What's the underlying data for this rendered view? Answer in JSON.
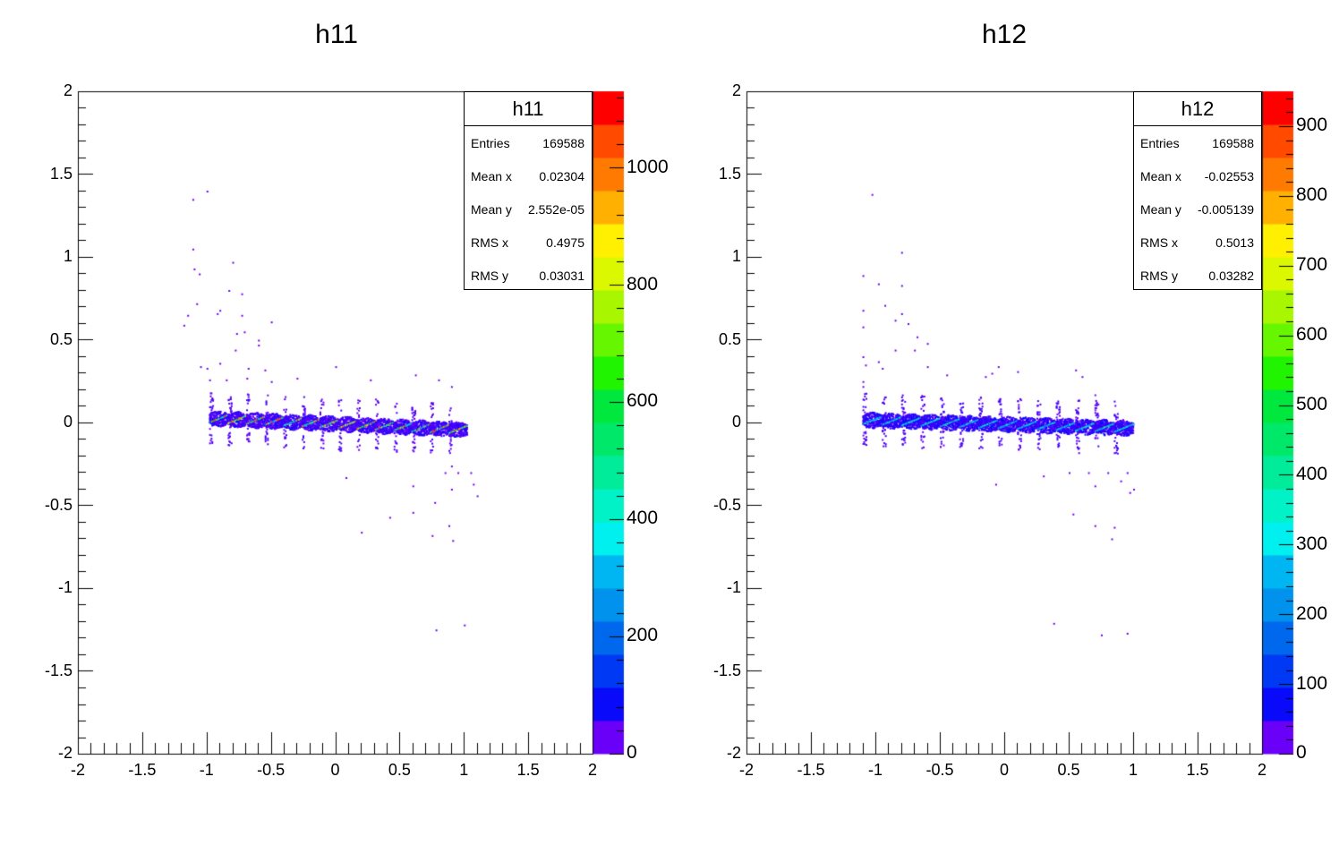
{
  "chart_data": [
    {
      "type": "heatmap",
      "title": "h11",
      "xlim": [
        -2,
        2
      ],
      "ylim": [
        -2,
        2
      ],
      "x_ticks": [
        "-2",
        "-1.5",
        "-1",
        "-0.5",
        "0",
        "0.5",
        "1",
        "1.5",
        "2"
      ],
      "y_ticks": [
        "2",
        "1.5",
        "1",
        "0.5",
        "0",
        "-0.5",
        "-1",
        "-1.5",
        "-2"
      ],
      "z_max": 1130,
      "z_ticks": [
        "0",
        "200",
        "400",
        "600",
        "800",
        "1000"
      ],
      "stats": {
        "title": "h11",
        "rows": [
          {
            "label": "Entries",
            "value": "169588"
          },
          {
            "label": "Mean x",
            "value": "0.02304"
          },
          {
            "label": "Mean y",
            "value": "2.552e-05"
          },
          {
            "label": "RMS x",
            "value": "0.4975"
          },
          {
            "label": "RMS y",
            "value": "0.03031"
          }
        ]
      },
      "band": {
        "x_start": -0.98,
        "x_end": 1.02,
        "y_start": 0.03,
        "y_end": -0.04,
        "teeth": 14
      },
      "outliers": [
        [
          -1.11,
          1.35
        ],
        [
          -1.0,
          1.4
        ],
        [
          -1.11,
          1.05
        ],
        [
          -1.1,
          0.93
        ],
        [
          -1.06,
          0.9
        ],
        [
          -0.8,
          0.97
        ],
        [
          -0.83,
          0.8
        ],
        [
          -0.73,
          0.78
        ],
        [
          -1.08,
          0.72
        ],
        [
          -1.15,
          0.65
        ],
        [
          -0.9,
          0.68
        ],
        [
          -0.92,
          0.66
        ],
        [
          -0.73,
          0.65
        ],
        [
          -1.18,
          0.59
        ],
        [
          -0.5,
          0.61
        ],
        [
          -0.77,
          0.54
        ],
        [
          -0.71,
          0.55
        ],
        [
          -0.6,
          0.5
        ],
        [
          -0.6,
          0.47
        ],
        [
          -0.78,
          0.44
        ],
        [
          -1.05,
          0.34
        ],
        [
          -1.0,
          0.33
        ],
        [
          -0.9,
          0.36
        ],
        [
          -0.55,
          0.32
        ],
        [
          -0.68,
          0.33
        ],
        [
          -0.98,
          0.26
        ],
        [
          -0.85,
          0.26
        ],
        [
          -0.69,
          0.27
        ],
        [
          -0.5,
          0.25
        ],
        [
          -0.3,
          0.27
        ],
        [
          0.0,
          0.34
        ],
        [
          0.27,
          0.26
        ],
        [
          0.62,
          0.29
        ],
        [
          0.8,
          0.26
        ],
        [
          0.9,
          0.22
        ],
        [
          0.85,
          -0.3
        ],
        [
          0.9,
          -0.26
        ],
        [
          0.95,
          -0.3
        ],
        [
          1.05,
          -0.3
        ],
        [
          1.07,
          -0.37
        ],
        [
          1.1,
          -0.44
        ],
        [
          0.6,
          -0.38
        ],
        [
          0.9,
          -0.4
        ],
        [
          0.42,
          -0.57
        ],
        [
          0.6,
          -0.54
        ],
        [
          0.77,
          -0.48
        ],
        [
          0.2,
          -0.66
        ],
        [
          0.88,
          -0.62
        ],
        [
          0.75,
          -0.68
        ],
        [
          0.91,
          -0.71
        ],
        [
          0.78,
          -1.25
        ],
        [
          1.0,
          -1.22
        ],
        [
          0.08,
          -0.33
        ]
      ]
    },
    {
      "type": "heatmap",
      "title": "h12",
      "xlim": [
        -2,
        2
      ],
      "ylim": [
        -2,
        2
      ],
      "x_ticks": [
        "-2",
        "-1.5",
        "-1",
        "-0.5",
        "0",
        "0.5",
        "1",
        "1.5",
        "2"
      ],
      "y_ticks": [
        "2",
        "1.5",
        "1",
        "0.5",
        "0",
        "-0.5",
        "-1",
        "-1.5",
        "-2"
      ],
      "z_max": 950,
      "z_ticks": [
        "0",
        "100",
        "200",
        "300",
        "400",
        "500",
        "600",
        "700",
        "800",
        "900"
      ],
      "stats": {
        "title": "h12",
        "rows": [
          {
            "label": "Entries",
            "value": "169588"
          },
          {
            "label": "Mean x",
            "value": "-0.02553"
          },
          {
            "label": "Mean y",
            "value": "-0.005139"
          },
          {
            "label": "RMS x",
            "value": "0.5013"
          },
          {
            "label": "RMS y",
            "value": "0.03282"
          }
        ]
      },
      "band": {
        "x_start": -1.1,
        "x_end": 1.0,
        "y_start": 0.02,
        "y_end": -0.03,
        "teeth": 14
      },
      "outliers": [
        [
          -1.03,
          1.38
        ],
        [
          -0.8,
          1.03
        ],
        [
          -1.1,
          0.89
        ],
        [
          -0.98,
          0.84
        ],
        [
          -0.8,
          0.83
        ],
        [
          -0.93,
          0.71
        ],
        [
          -1.1,
          0.68
        ],
        [
          -0.8,
          0.66
        ],
        [
          -0.85,
          0.62
        ],
        [
          -1.1,
          0.58
        ],
        [
          -0.75,
          0.6
        ],
        [
          -0.68,
          0.52
        ],
        [
          -0.6,
          0.48
        ],
        [
          -0.85,
          0.44
        ],
        [
          -0.7,
          0.44
        ],
        [
          -1.1,
          0.4
        ],
        [
          -1.08,
          0.35
        ],
        [
          -0.98,
          0.37
        ],
        [
          -0.95,
          0.33
        ],
        [
          -0.6,
          0.34
        ],
        [
          -0.45,
          0.29
        ],
        [
          -0.15,
          0.28
        ],
        [
          -0.05,
          0.34
        ],
        [
          0.1,
          0.31
        ],
        [
          0.55,
          0.32
        ],
        [
          0.6,
          0.28
        ],
        [
          0.7,
          0.17
        ],
        [
          -0.1,
          0.3
        ],
        [
          -1.1,
          0.25
        ],
        [
          -1.1,
          0.22
        ],
        [
          0.5,
          -0.3
        ],
        [
          0.65,
          -0.3
        ],
        [
          0.7,
          -0.38
        ],
        [
          0.8,
          -0.3
        ],
        [
          0.9,
          -0.35
        ],
        [
          0.95,
          -0.3
        ],
        [
          1.0,
          -0.4
        ],
        [
          0.97,
          -0.42
        ],
        [
          -0.07,
          -0.37
        ],
        [
          0.53,
          -0.55
        ],
        [
          0.7,
          -0.62
        ],
        [
          0.85,
          -0.63
        ],
        [
          0.83,
          -0.7
        ],
        [
          0.38,
          -1.21
        ],
        [
          0.75,
          -1.28
        ],
        [
          0.95,
          -1.27
        ],
        [
          0.3,
          -0.32
        ]
      ]
    }
  ]
}
